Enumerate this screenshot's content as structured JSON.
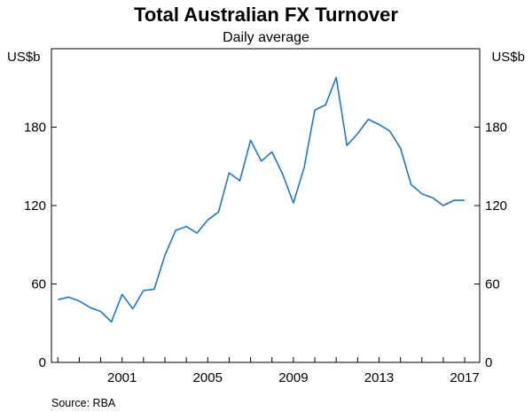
{
  "chart_data": {
    "type": "line",
    "title": "Total Australian FX Turnover",
    "subtitle": "Daily average",
    "ylabel_left": "US$b",
    "ylabel_right": "US$b",
    "ylim": [
      0,
      240
    ],
    "yticks": [
      0,
      60,
      120,
      180
    ],
    "xlim": [
      1997.7,
      2017.7
    ],
    "xticks": [
      2001,
      2005,
      2009,
      2013,
      2017
    ],
    "xtick_labels": [
      "2001",
      "2005",
      "2009",
      "2013",
      "2017"
    ],
    "grid": false,
    "source": "Source:   RBA",
    "colors": {
      "line": "#1f78c8",
      "axes": "#000000"
    },
    "series": [
      {
        "x": [
          1998.0,
          1998.5,
          1999.0,
          1999.5,
          2000.0,
          2000.5,
          2001.0,
          2001.5,
          2002.0,
          2002.5,
          2003.0,
          2003.5,
          2004.0,
          2004.5,
          2005.0,
          2005.5,
          2006.0,
          2006.5,
          2007.0,
          2007.5,
          2008.0,
          2008.5,
          2009.0,
          2009.5,
          2010.0,
          2010.5,
          2011.0,
          2011.5,
          2012.0,
          2012.5,
          2013.0,
          2013.5,
          2014.0,
          2014.5,
          2015.0,
          2015.5,
          2016.0,
          2016.5,
          2017.0
        ],
        "values": [
          48,
          50,
          47,
          42,
          39,
          31,
          52,
          41,
          55,
          56,
          82,
          101,
          104,
          99,
          109,
          115,
          145,
          139,
          170,
          154,
          161,
          144,
          122,
          149,
          193,
          197,
          218,
          166,
          175,
          186,
          182,
          177,
          164,
          136,
          129,
          126,
          120,
          124,
          124
        ]
      }
    ]
  }
}
